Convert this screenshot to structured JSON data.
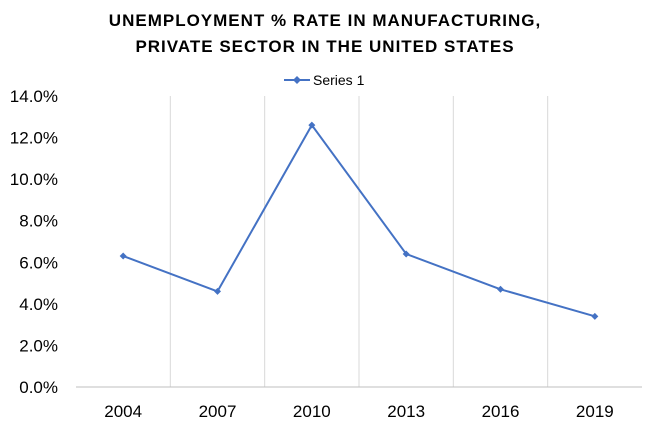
{
  "chart_data": {
    "type": "line",
    "title": [
      "UNEMPLOYMENT % RATE IN MANUFACTURING,",
      "PRIVATE SECTOR IN THE UNITED STATES"
    ],
    "xlabel": "",
    "ylabel": "",
    "categories": [
      "2004",
      "2007",
      "2010",
      "2013",
      "2016",
      "2019"
    ],
    "series": [
      {
        "name": "Series 1",
        "values": [
          6.3,
          4.6,
          12.6,
          6.4,
          4.7,
          3.4
        ],
        "color": "#4472c4",
        "marker": "diamond"
      }
    ],
    "ylim": [
      0,
      14
    ],
    "yticks": [
      "0.0%",
      "2.0%",
      "4.0%",
      "6.0%",
      "8.0%",
      "10.0%",
      "12.0%",
      "14.0%"
    ],
    "grid": "vertical",
    "legend": "top"
  }
}
